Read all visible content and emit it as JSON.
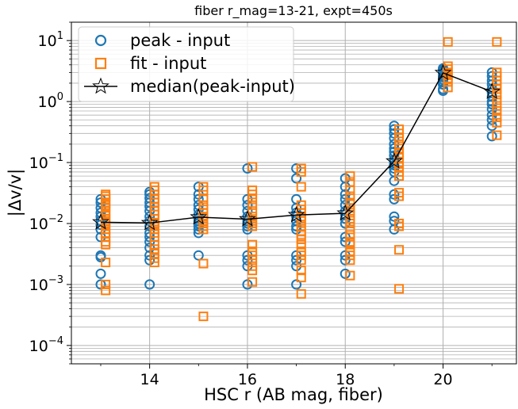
{
  "chart_data": {
    "type": "scatter",
    "title": "fiber r_mag=13-21, expt=450s",
    "xlabel": "HSC r (AB mag, fiber)",
    "ylabel": "|Δv/v|",
    "xlim": [
      12.4,
      21.5
    ],
    "ylim": [
      5e-05,
      20
    ],
    "yscale": "log",
    "grid": true,
    "legend_position": "top-left",
    "xticks": [
      {
        "value": 14,
        "label": "14"
      },
      {
        "value": 16,
        "label": "16"
      },
      {
        "value": 18,
        "label": "18"
      },
      {
        "value": 20,
        "label": "20"
      }
    ],
    "yticks": [
      {
        "value": 0.0001,
        "base": "10",
        "exp": "−4"
      },
      {
        "value": 0.001,
        "base": "10",
        "exp": "−3"
      },
      {
        "value": 0.01,
        "base": "10",
        "exp": "−2"
      },
      {
        "value": 0.1,
        "base": "10",
        "exp": "−1"
      },
      {
        "value": 1,
        "base": "10",
        "exp": "0"
      },
      {
        "value": 10,
        "base": "10",
        "exp": "1"
      }
    ],
    "series": [
      {
        "name": "peak - input",
        "marker": "circle",
        "color": "#1f77b4",
        "points": [
          [
            13,
            0.025
          ],
          [
            13,
            0.022
          ],
          [
            13,
            0.018
          ],
          [
            13,
            0.015
          ],
          [
            13,
            0.013
          ],
          [
            13,
            0.011
          ],
          [
            13,
            0.0095
          ],
          [
            13,
            0.008
          ],
          [
            13,
            0.006
          ],
          [
            13,
            0.003
          ],
          [
            13,
            0.0028
          ],
          [
            13,
            0.0015
          ],
          [
            13,
            0.001
          ],
          [
            14,
            0.033
          ],
          [
            14,
            0.03
          ],
          [
            14,
            0.026
          ],
          [
            14,
            0.022
          ],
          [
            14,
            0.019
          ],
          [
            14,
            0.016
          ],
          [
            14,
            0.013
          ],
          [
            14,
            0.011
          ],
          [
            14,
            0.009
          ],
          [
            14,
            0.007
          ],
          [
            14,
            0.006
          ],
          [
            14,
            0.005
          ],
          [
            14,
            0.004
          ],
          [
            14,
            0.003
          ],
          [
            14,
            0.0025
          ],
          [
            14,
            0.001
          ],
          [
            15,
            0.04
          ],
          [
            15,
            0.03
          ],
          [
            15,
            0.025
          ],
          [
            15,
            0.02
          ],
          [
            15,
            0.017
          ],
          [
            15,
            0.014
          ],
          [
            15,
            0.012
          ],
          [
            15,
            0.011
          ],
          [
            15,
            0.01
          ],
          [
            15,
            0.009
          ],
          [
            15,
            0.008
          ],
          [
            15,
            0.007
          ],
          [
            15,
            0.003
          ],
          [
            16,
            0.08
          ],
          [
            16,
            0.025
          ],
          [
            16,
            0.02
          ],
          [
            16,
            0.016
          ],
          [
            16,
            0.013
          ],
          [
            16,
            0.011
          ],
          [
            16,
            0.01
          ],
          [
            16,
            0.009
          ],
          [
            16,
            0.008
          ],
          [
            16,
            0.003
          ],
          [
            16,
            0.0025
          ],
          [
            16,
            0.002
          ],
          [
            16,
            0.001
          ],
          [
            17,
            0.08
          ],
          [
            17,
            0.055
          ],
          [
            17,
            0.025
          ],
          [
            17,
            0.018
          ],
          [
            17,
            0.015
          ],
          [
            17,
            0.013
          ],
          [
            17,
            0.011
          ],
          [
            17,
            0.009
          ],
          [
            17,
            0.008
          ],
          [
            17,
            0.003
          ],
          [
            17,
            0.0025
          ],
          [
            17,
            0.002
          ],
          [
            17,
            0.001
          ],
          [
            18,
            0.055
          ],
          [
            18,
            0.04
          ],
          [
            18,
            0.03
          ],
          [
            18,
            0.025
          ],
          [
            18,
            0.02
          ],
          [
            18,
            0.016
          ],
          [
            18,
            0.014
          ],
          [
            18,
            0.012
          ],
          [
            18,
            0.01
          ],
          [
            18,
            0.006
          ],
          [
            18,
            0.005
          ],
          [
            18,
            0.003
          ],
          [
            18,
            0.0025
          ],
          [
            18,
            0.0015
          ],
          [
            19,
            0.4
          ],
          [
            19,
            0.35
          ],
          [
            19,
            0.3
          ],
          [
            19,
            0.25
          ],
          [
            19,
            0.2
          ],
          [
            19,
            0.17
          ],
          [
            19,
            0.15
          ],
          [
            19,
            0.13
          ],
          [
            19,
            0.11
          ],
          [
            19,
            0.1
          ],
          [
            19,
            0.09
          ],
          [
            19,
            0.08
          ],
          [
            19,
            0.07
          ],
          [
            19,
            0.05
          ],
          [
            19,
            0.03
          ],
          [
            19,
            0.025
          ],
          [
            19,
            0.013
          ],
          [
            19,
            0.011
          ],
          [
            19,
            0.008
          ],
          [
            20,
            3.5
          ],
          [
            20,
            3.3
          ],
          [
            20,
            3.1
          ],
          [
            20,
            2.9
          ],
          [
            20,
            2.7
          ],
          [
            20,
            2.5
          ],
          [
            20,
            2.3
          ],
          [
            20,
            2.1
          ],
          [
            20,
            1.9
          ],
          [
            20,
            1.6
          ],
          [
            20,
            1.5
          ],
          [
            21,
            3.0
          ],
          [
            21,
            2.6
          ],
          [
            21,
            2.2
          ],
          [
            21,
            1.9
          ],
          [
            21,
            1.6
          ],
          [
            21,
            1.4
          ],
          [
            21,
            1.2
          ],
          [
            21,
            1.0
          ],
          [
            21,
            0.9
          ],
          [
            21,
            0.75
          ],
          [
            21,
            0.6
          ],
          [
            21,
            0.5
          ],
          [
            21,
            0.4
          ],
          [
            21,
            0.27
          ]
        ]
      },
      {
        "name": "fit - input",
        "marker": "square",
        "color": "#ff7f0e",
        "points": [
          [
            13.1,
            0.03
          ],
          [
            13.1,
            0.028
          ],
          [
            13.1,
            0.025
          ],
          [
            13.1,
            0.022
          ],
          [
            13.1,
            0.02
          ],
          [
            13.1,
            0.018
          ],
          [
            13.1,
            0.016
          ],
          [
            13.1,
            0.014
          ],
          [
            13.1,
            0.012
          ],
          [
            13.1,
            0.011
          ],
          [
            13.1,
            0.01
          ],
          [
            13.1,
            0.009
          ],
          [
            13.1,
            0.008
          ],
          [
            13.1,
            0.007
          ],
          [
            13.1,
            0.006
          ],
          [
            13.1,
            0.005
          ],
          [
            13.1,
            0.0045
          ],
          [
            13.1,
            0.0023
          ],
          [
            13.1,
            0.001
          ],
          [
            13.1,
            0.0008
          ],
          [
            14.1,
            0.04
          ],
          [
            14.1,
            0.035
          ],
          [
            14.1,
            0.03
          ],
          [
            14.1,
            0.025
          ],
          [
            14.1,
            0.022
          ],
          [
            14.1,
            0.019
          ],
          [
            14.1,
            0.016
          ],
          [
            14.1,
            0.014
          ],
          [
            14.1,
            0.012
          ],
          [
            14.1,
            0.01
          ],
          [
            14.1,
            0.009
          ],
          [
            14.1,
            0.008
          ],
          [
            14.1,
            0.007
          ],
          [
            14.1,
            0.006
          ],
          [
            14.1,
            0.0045
          ],
          [
            14.1,
            0.0038
          ],
          [
            14.1,
            0.0032
          ],
          [
            14.1,
            0.0027
          ],
          [
            14.1,
            0.0023
          ],
          [
            15.1,
            0.04
          ],
          [
            15.1,
            0.035
          ],
          [
            15.1,
            0.025
          ],
          [
            15.1,
            0.02
          ],
          [
            15.1,
            0.017
          ],
          [
            15.1,
            0.015
          ],
          [
            15.1,
            0.013
          ],
          [
            15.1,
            0.011
          ],
          [
            15.1,
            0.01
          ],
          [
            15.1,
            0.009
          ],
          [
            15.1,
            0.008
          ],
          [
            15.1,
            0.0022
          ],
          [
            15.1,
            0.0003
          ],
          [
            16.1,
            0.085
          ],
          [
            16.1,
            0.035
          ],
          [
            16.1,
            0.03
          ],
          [
            16.1,
            0.025
          ],
          [
            16.1,
            0.02
          ],
          [
            16.1,
            0.016
          ],
          [
            16.1,
            0.013
          ],
          [
            16.1,
            0.011
          ],
          [
            16.1,
            0.01
          ],
          [
            16.1,
            0.009
          ],
          [
            16.1,
            0.0045
          ],
          [
            16.1,
            0.0035
          ],
          [
            16.1,
            0.003
          ],
          [
            16.1,
            0.0025
          ],
          [
            16.1,
            0.002
          ],
          [
            16.1,
            0.0017
          ],
          [
            16.1,
            0.0011
          ],
          [
            17.1,
            0.08
          ],
          [
            17.1,
            0.07
          ],
          [
            17.1,
            0.04
          ],
          [
            17.1,
            0.02
          ],
          [
            17.1,
            0.017
          ],
          [
            17.1,
            0.015
          ],
          [
            17.1,
            0.013
          ],
          [
            17.1,
            0.011
          ],
          [
            17.1,
            0.009
          ],
          [
            17.1,
            0.0075
          ],
          [
            17.1,
            0.0065
          ],
          [
            17.1,
            0.0055
          ],
          [
            17.1,
            0.0045
          ],
          [
            17.1,
            0.0035
          ],
          [
            17.1,
            0.003
          ],
          [
            17.1,
            0.0025
          ],
          [
            17.1,
            0.0017
          ],
          [
            17.1,
            0.0013
          ],
          [
            17.1,
            0.0007
          ],
          [
            18.1,
            0.06
          ],
          [
            18.1,
            0.048
          ],
          [
            18.1,
            0.035
          ],
          [
            18.1,
            0.028
          ],
          [
            18.1,
            0.022
          ],
          [
            18.1,
            0.018
          ],
          [
            18.1,
            0.015
          ],
          [
            18.1,
            0.012
          ],
          [
            18.1,
            0.01
          ],
          [
            18.1,
            0.008
          ],
          [
            18.1,
            0.0065
          ],
          [
            18.1,
            0.005
          ],
          [
            18.1,
            0.0045
          ],
          [
            18.1,
            0.0035
          ],
          [
            18.1,
            0.003
          ],
          [
            18.1,
            0.0025
          ],
          [
            18.1,
            0.0014
          ],
          [
            19.1,
            0.35
          ],
          [
            19.1,
            0.3
          ],
          [
            19.1,
            0.25
          ],
          [
            19.1,
            0.2
          ],
          [
            19.1,
            0.17
          ],
          [
            19.1,
            0.14
          ],
          [
            19.1,
            0.12
          ],
          [
            19.1,
            0.1
          ],
          [
            19.1,
            0.085
          ],
          [
            19.1,
            0.07
          ],
          [
            19.1,
            0.06
          ],
          [
            19.1,
            0.032
          ],
          [
            19.1,
            0.028
          ],
          [
            19.1,
            0.01
          ],
          [
            19.1,
            0.009
          ],
          [
            19.1,
            0.0037
          ],
          [
            19.1,
            0.00085
          ],
          [
            20.1,
            9.5
          ],
          [
            20.1,
            3.8
          ],
          [
            20.1,
            3.4
          ],
          [
            20.1,
            3.0
          ],
          [
            20.1,
            2.7
          ],
          [
            20.1,
            2.4
          ],
          [
            20.1,
            2.1
          ],
          [
            20.1,
            1.7
          ],
          [
            21.1,
            9.5
          ],
          [
            21.1,
            3.0
          ],
          [
            21.1,
            2.6
          ],
          [
            21.1,
            2.2
          ],
          [
            21.1,
            1.9
          ],
          [
            21.1,
            1.6
          ],
          [
            21.1,
            1.3
          ],
          [
            21.1,
            1.05
          ],
          [
            21.1,
            0.85
          ],
          [
            21.1,
            0.7
          ],
          [
            21.1,
            0.55
          ],
          [
            21.1,
            0.45
          ],
          [
            21.1,
            0.28
          ]
        ]
      },
      {
        "name": "median(peak-input)",
        "marker": "star",
        "color": "#000000",
        "line": true,
        "points": [
          [
            13,
            0.0105
          ],
          [
            14,
            0.0102
          ],
          [
            15,
            0.0127
          ],
          [
            16,
            0.0118
          ],
          [
            17,
            0.0138
          ],
          [
            18,
            0.0147
          ],
          [
            19,
            0.105
          ],
          [
            20,
            2.95
          ],
          [
            21,
            1.45
          ]
        ]
      }
    ]
  }
}
